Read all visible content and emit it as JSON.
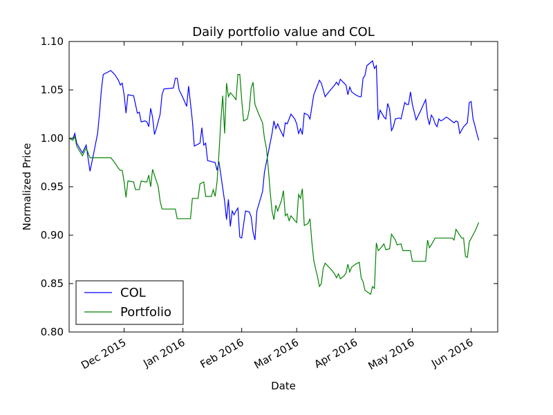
{
  "chart_data": {
    "type": "line",
    "title": "Daily portfolio value and COL",
    "xlabel": "Date",
    "ylabel": "Normalized Price",
    "ylim": [
      0.8,
      1.1
    ],
    "yticks": [
      "0.80",
      "0.85",
      "0.90",
      "0.95",
      "1.00",
      "1.05",
      "1.10"
    ],
    "x_range_days": [
      0,
      226
    ],
    "xticks": [
      {
        "label": "Dec 2015",
        "day": 29
      },
      {
        "label": "Jan 2016",
        "day": 60
      },
      {
        "label": "Feb 2016",
        "day": 91
      },
      {
        "label": "Mar 2016",
        "day": 120
      },
      {
        "label": "Apr 2016",
        "day": 151
      },
      {
        "label": "May 2016",
        "day": 181
      },
      {
        "label": "Jun 2016",
        "day": 212
      }
    ],
    "legend": {
      "position": "lower-left"
    },
    "series": [
      {
        "name": "COL",
        "color": "#0000ff",
        "points": [
          [
            0,
            1.0
          ],
          [
            2,
            1.0
          ],
          [
            3,
            1.005
          ],
          [
            4,
            0.995
          ],
          [
            7,
            0.985
          ],
          [
            9,
            0.993
          ],
          [
            11,
            0.966
          ],
          [
            13,
            0.985
          ],
          [
            15,
            1.005
          ],
          [
            16,
            1.025
          ],
          [
            17,
            1.05
          ],
          [
            18,
            1.066
          ],
          [
            22,
            1.07
          ],
          [
            24,
            1.066
          ],
          [
            26,
            1.06
          ],
          [
            27,
            1.055
          ],
          [
            28,
            1.057
          ],
          [
            29,
            1.045
          ],
          [
            30,
            1.026
          ],
          [
            31,
            1.045
          ],
          [
            34,
            1.044
          ],
          [
            35,
            1.035
          ],
          [
            36,
            1.026
          ],
          [
            37,
            1.027
          ],
          [
            38,
            1.017
          ],
          [
            40,
            1.018
          ],
          [
            41,
            1.017
          ],
          [
            42,
            1.012
          ],
          [
            43,
            1.031
          ],
          [
            44,
            1.022
          ],
          [
            45,
            1.004
          ],
          [
            46,
            1.01
          ],
          [
            48,
            1.025
          ],
          [
            49,
            1.045
          ],
          [
            50,
            1.051
          ],
          [
            55,
            1.052
          ],
          [
            56,
            1.062
          ],
          [
            57,
            1.062
          ],
          [
            58,
            1.05
          ],
          [
            60,
            1.042
          ],
          [
            62,
            1.033
          ],
          [
            63,
            1.054
          ],
          [
            64,
            1.036
          ],
          [
            65,
            1.018
          ],
          [
            66,
            0.992
          ],
          [
            69,
            0.995
          ],
          [
            70,
            1.011
          ],
          [
            71,
            0.993
          ],
          [
            72,
            0.995
          ],
          [
            73,
            0.977
          ],
          [
            77,
            0.975
          ],
          [
            78,
            0.967
          ],
          [
            79,
            0.976
          ],
          [
            82,
            0.935
          ],
          [
            83,
            0.916
          ],
          [
            84,
            0.937
          ],
          [
            85,
            0.909
          ],
          [
            86,
            0.925
          ],
          [
            87,
            0.921
          ],
          [
            88,
            0.925
          ],
          [
            89,
            0.928
          ],
          [
            90,
            0.898
          ],
          [
            91,
            0.897
          ],
          [
            93,
            0.925
          ],
          [
            95,
            0.924
          ],
          [
            96,
            0.919
          ],
          [
            97,
            0.903
          ],
          [
            98,
            0.895
          ],
          [
            99,
            0.925
          ],
          [
            102,
            0.945
          ],
          [
            103,
            0.965
          ],
          [
            105,
            0.985
          ],
          [
            107,
            1.005
          ],
          [
            108,
            1.018
          ],
          [
            109,
            1.01
          ],
          [
            110,
            1.015
          ],
          [
            111,
            1.01
          ],
          [
            113,
            1.002
          ],
          [
            114,
            1.016
          ],
          [
            115,
            1.015
          ],
          [
            117,
            1.025
          ],
          [
            119,
            1.02
          ],
          [
            120,
            1.015
          ],
          [
            121,
            1.005
          ],
          [
            122,
            1.01
          ],
          [
            123,
            1.004
          ],
          [
            124,
            1.026
          ],
          [
            126,
            1.024
          ],
          [
            127,
            1.02
          ],
          [
            129,
            1.045
          ],
          [
            132,
            1.06
          ],
          [
            133,
            1.057
          ],
          [
            134,
            1.05
          ],
          [
            135,
            1.043
          ],
          [
            137,
            1.048
          ],
          [
            140,
            1.055
          ],
          [
            141,
            1.058
          ],
          [
            142,
            1.055
          ],
          [
            143,
            1.061
          ],
          [
            145,
            1.057
          ],
          [
            146,
            1.055
          ],
          [
            147,
            1.045
          ],
          [
            148,
            1.053
          ],
          [
            149,
            1.048
          ],
          [
            151,
            1.045
          ],
          [
            153,
            1.043
          ],
          [
            154,
            1.043
          ],
          [
            155,
            1.062
          ],
          [
            156,
            1.065
          ],
          [
            157,
            1.075
          ],
          [
            160,
            1.08
          ],
          [
            161,
            1.072
          ],
          [
            162,
            1.075
          ],
          [
            163,
            1.019
          ],
          [
            164,
            1.029
          ],
          [
            166,
            1.022
          ],
          [
            167,
            1.02
          ],
          [
            168,
            1.036
          ],
          [
            169,
            1.03
          ],
          [
            170,
            1.008
          ],
          [
            171,
            1.012
          ],
          [
            172,
            1.02
          ],
          [
            174,
            1.021
          ],
          [
            175,
            1.02
          ],
          [
            177,
            1.037
          ],
          [
            178,
            1.035
          ],
          [
            179,
            1.035
          ],
          [
            180,
            1.048
          ],
          [
            181,
            1.035
          ],
          [
            183,
            1.019
          ],
          [
            185,
            1.027
          ],
          [
            188,
            1.04
          ],
          [
            189,
            1.022
          ],
          [
            190,
            1.014
          ],
          [
            191,
            1.024
          ],
          [
            192,
            1.021
          ],
          [
            193,
            1.015
          ],
          [
            194,
            1.012
          ],
          [
            195,
            1.02
          ],
          [
            196,
            1.018
          ],
          [
            197,
            1.019
          ],
          [
            199,
            1.022
          ],
          [
            201,
            1.019
          ],
          [
            203,
            1.016
          ],
          [
            204,
            1.018
          ],
          [
            205,
            1.017
          ],
          [
            206,
            1.005
          ],
          [
            208,
            1.012
          ],
          [
            209,
            1.014
          ],
          [
            210,
            1.016
          ],
          [
            211,
            1.037
          ],
          [
            212,
            1.038
          ],
          [
            213,
            1.02
          ],
          [
            214,
            1.013
          ],
          [
            215,
            1.005
          ],
          [
            216,
            0.998
          ]
        ]
      },
      {
        "name": "Portfolio",
        "color": "#008000",
        "points": [
          [
            0,
            1.0
          ],
          [
            2,
            0.998
          ],
          [
            3,
            1.002
          ],
          [
            4,
            0.992
          ],
          [
            7,
            0.982
          ],
          [
            9,
            0.99
          ],
          [
            11,
            0.98
          ],
          [
            19,
            0.98
          ],
          [
            22,
            0.98
          ],
          [
            24,
            0.975
          ],
          [
            26,
            0.969
          ],
          [
            27,
            0.967
          ],
          [
            28,
            0.967
          ],
          [
            29,
            0.955
          ],
          [
            30,
            0.939
          ],
          [
            31,
            0.956
          ],
          [
            34,
            0.955
          ],
          [
            35,
            0.947
          ],
          [
            37,
            0.947
          ],
          [
            38,
            0.956
          ],
          [
            40,
            0.955
          ],
          [
            41,
            0.955
          ],
          [
            42,
            0.962
          ],
          [
            43,
            0.95
          ],
          [
            44,
            0.968
          ],
          [
            45,
            0.962
          ],
          [
            46,
            0.956
          ],
          [
            47,
            0.95
          ],
          [
            48,
            0.935
          ],
          [
            49,
            0.927
          ],
          [
            52,
            0.927
          ],
          [
            56,
            0.927
          ],
          [
            57,
            0.917
          ],
          [
            60,
            0.917
          ],
          [
            63,
            0.917
          ],
          [
            64,
            0.917
          ],
          [
            65,
            0.938
          ],
          [
            67,
            0.938
          ],
          [
            68,
            0.938
          ],
          [
            69,
            0.953
          ],
          [
            71,
            0.955
          ],
          [
            72,
            0.94
          ],
          [
            75,
            0.94
          ],
          [
            76,
            0.947
          ],
          [
            77,
            0.94
          ],
          [
            78,
            0.955
          ],
          [
            79,
            0.984
          ],
          [
            80,
            1.018
          ],
          [
            81,
            1.044
          ],
          [
            82,
            1.005
          ],
          [
            83,
            1.057
          ],
          [
            84,
            1.043
          ],
          [
            85,
            1.047
          ],
          [
            86,
            1.045
          ],
          [
            88,
            1.04
          ],
          [
            89,
            1.066
          ],
          [
            90,
            1.066
          ],
          [
            91,
            1.04
          ],
          [
            92,
            1.018
          ],
          [
            94,
            1.02
          ],
          [
            95,
            1.03
          ],
          [
            96,
            1.052
          ],
          [
            97,
            1.058
          ],
          [
            98,
            1.035
          ],
          [
            100,
            1.025
          ],
          [
            102,
            1.016
          ],
          [
            103,
            1.0
          ],
          [
            104,
            0.99
          ],
          [
            105,
            0.97
          ],
          [
            106,
            0.945
          ],
          [
            107,
            0.925
          ],
          [
            108,
            0.916
          ],
          [
            109,
            0.931
          ],
          [
            110,
            0.925
          ],
          [
            112,
            0.936
          ],
          [
            113,
            0.946
          ],
          [
            114,
            0.92
          ],
          [
            115,
            0.922
          ],
          [
            116,
            0.915
          ],
          [
            117,
            0.92
          ],
          [
            119,
            0.915
          ],
          [
            120,
            0.913
          ],
          [
            121,
            0.942
          ],
          [
            122,
            0.938
          ],
          [
            123,
            0.948
          ],
          [
            124,
            0.91
          ],
          [
            126,
            0.912
          ],
          [
            127,
            0.917
          ],
          [
            128,
            0.893
          ],
          [
            129,
            0.874
          ],
          [
            130,
            0.865
          ],
          [
            131,
            0.857
          ],
          [
            132,
            0.847
          ],
          [
            133,
            0.85
          ],
          [
            134,
            0.866
          ],
          [
            135,
            0.871
          ],
          [
            137,
            0.867
          ],
          [
            138,
            0.865
          ],
          [
            140,
            0.86
          ],
          [
            141,
            0.856
          ],
          [
            142,
            0.86
          ],
          [
            143,
            0.855
          ],
          [
            145,
            0.858
          ],
          [
            146,
            0.861
          ],
          [
            147,
            0.87
          ],
          [
            148,
            0.862
          ],
          [
            149,
            0.867
          ],
          [
            151,
            0.87
          ],
          [
            153,
            0.872
          ],
          [
            154,
            0.856
          ],
          [
            155,
            0.852
          ],
          [
            156,
            0.843
          ],
          [
            159,
            0.839
          ],
          [
            160,
            0.847
          ],
          [
            161,
            0.845
          ],
          [
            162,
            0.892
          ],
          [
            163,
            0.884
          ],
          [
            164,
            0.886
          ],
          [
            166,
            0.891
          ],
          [
            167,
            0.885
          ],
          [
            169,
            0.886
          ],
          [
            170,
            0.901
          ],
          [
            172,
            0.895
          ],
          [
            173,
            0.89
          ],
          [
            175,
            0.891
          ],
          [
            176,
            0.884
          ],
          [
            180,
            0.884
          ],
          [
            181,
            0.873
          ],
          [
            188,
            0.873
          ],
          [
            189,
            0.895
          ],
          [
            190,
            0.887
          ],
          [
            191,
            0.89
          ],
          [
            193,
            0.897
          ],
          [
            200,
            0.897
          ],
          [
            202,
            0.897
          ],
          [
            203,
            0.895
          ],
          [
            204,
            0.906
          ],
          [
            205,
            0.903
          ],
          [
            206,
            0.9
          ],
          [
            207,
            0.897
          ],
          [
            208,
            0.897
          ],
          [
            209,
            0.878
          ],
          [
            210,
            0.877
          ],
          [
            211,
            0.893
          ],
          [
            214,
            0.904
          ],
          [
            216,
            0.913
          ]
        ]
      }
    ]
  }
}
